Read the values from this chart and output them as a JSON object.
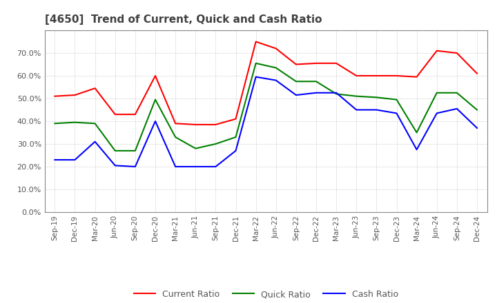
{
  "title": "[4650]  Trend of Current, Quick and Cash Ratio",
  "x_labels": [
    "Sep-19",
    "Dec-19",
    "Mar-20",
    "Jun-20",
    "Sep-20",
    "Dec-20",
    "Mar-21",
    "Jun-21",
    "Sep-21",
    "Dec-21",
    "Mar-22",
    "Jun-22",
    "Sep-22",
    "Dec-22",
    "Mar-23",
    "Jun-23",
    "Sep-23",
    "Dec-23",
    "Mar-24",
    "Jun-24",
    "Sep-24",
    "Dec-24"
  ],
  "current_ratio": [
    51.0,
    51.5,
    54.5,
    43.0,
    43.0,
    60.0,
    39.0,
    38.5,
    38.5,
    41.0,
    75.0,
    72.0,
    65.0,
    65.5,
    65.5,
    60.0,
    60.0,
    60.0,
    59.5,
    71.0,
    70.0,
    61.0
  ],
  "quick_ratio": [
    39.0,
    39.5,
    39.0,
    27.0,
    27.0,
    49.5,
    33.0,
    28.0,
    30.0,
    33.0,
    65.5,
    63.5,
    57.5,
    57.5,
    52.0,
    51.0,
    50.5,
    49.5,
    35.0,
    52.5,
    52.5,
    45.0
  ],
  "cash_ratio": [
    23.0,
    23.0,
    31.0,
    20.5,
    20.0,
    40.0,
    20.0,
    20.0,
    20.0,
    27.0,
    59.5,
    58.0,
    51.5,
    52.5,
    52.5,
    45.0,
    45.0,
    43.5,
    27.5,
    43.5,
    45.5,
    37.0
  ],
  "ylim": [
    0,
    80
  ],
  "yticks": [
    0,
    10,
    20,
    30,
    40,
    50,
    60,
    70
  ],
  "current_color": "#ff0000",
  "quick_color": "#008000",
  "cash_color": "#0000ff",
  "background_color": "#ffffff",
  "grid_color": "#aaaaaa",
  "title_color": "#404040",
  "tick_color": "#555555"
}
